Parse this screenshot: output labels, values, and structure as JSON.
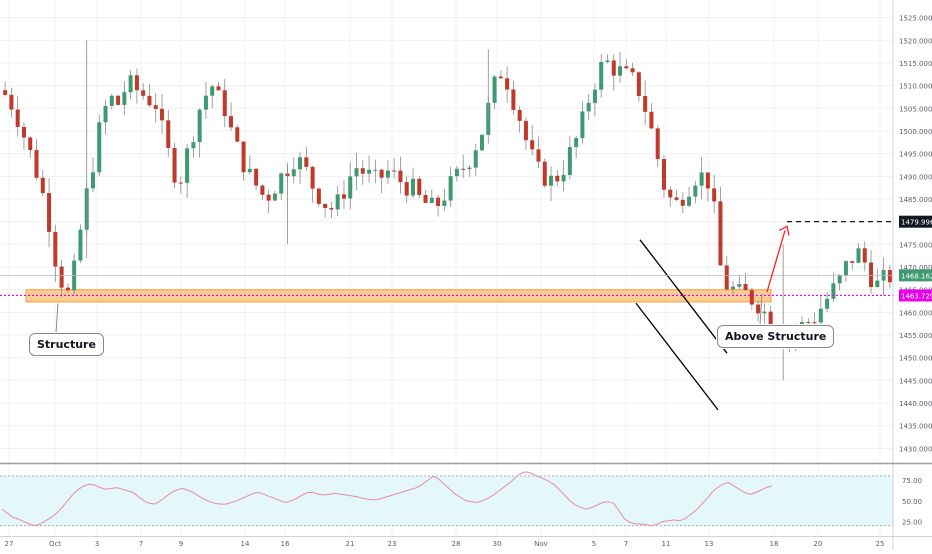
{
  "colors": {
    "up": "#3f9a72",
    "down": "#c0392b",
    "wick": "#8a8a8a",
    "zone": "#f7a23c",
    "support": "#e800e8",
    "target": "#000000",
    "arrow": "#ff1f1f",
    "rsi": "#e88aa8",
    "rsi_band": "#e4f7fb",
    "current": "#3f9a72"
  },
  "annotations": {
    "structure": "Structure",
    "above_structure": "Above Structure"
  },
  "chart_data": [
    {
      "type": "candlestick",
      "title": "",
      "y_ticks": [
        "1430.000",
        "1435.000",
        "1440.000",
        "1445.000",
        "1450.000",
        "1455.000",
        "1460.000",
        "1465.000",
        "1470.000",
        "1475.000",
        "1480.000",
        "1485.000",
        "1490.000",
        "1495.000",
        "1500.000",
        "1505.000",
        "1510.000",
        "1515.000",
        "1520.000",
        "1525.000"
      ],
      "ylim": [
        1427,
        1528
      ],
      "x_ticks": [
        "27",
        "Oct",
        "3",
        "7",
        "9",
        "14",
        "16",
        "21",
        "23",
        "28",
        "30",
        "Nov",
        "5",
        "7",
        "11",
        "13",
        "18",
        "20",
        "25"
      ],
      "price_labels": {
        "target": "1479.996",
        "current": "1468.162",
        "support": "1463.729"
      },
      "levels": {
        "target": 1479.996,
        "current": 1468.162,
        "support": 1463.729,
        "zone_low": 1462.3,
        "zone_high": 1465.0
      },
      "close_path": [
        1508,
        1506,
        1503,
        1499,
        1495,
        1491,
        1486,
        1480,
        1472,
        1467,
        1464,
        1469,
        1478,
        1486,
        1493,
        1500,
        1505,
        1507,
        1506,
        1509,
        1510,
        1509,
        1508,
        1507,
        1506,
        1500,
        1495,
        1491,
        1490,
        1495,
        1500,
        1505,
        1508,
        1510,
        1507,
        1505,
        1500,
        1496,
        1493,
        1490,
        1488,
        1486,
        1486,
        1488,
        1490,
        1492,
        1494,
        1493,
        1491,
        1488,
        1486,
        1484,
        1483,
        1484,
        1487,
        1490,
        1492,
        1491,
        1490,
        1489,
        1490,
        1491,
        1490,
        1489,
        1488,
        1487,
        1485,
        1484,
        1483,
        1484,
        1486,
        1488,
        1490,
        1492,
        1494,
        1497,
        1500,
        1505,
        1510,
        1513,
        1511,
        1507,
        1503,
        1498,
        1494,
        1491,
        1490,
        1489,
        1490,
        1492,
        1495,
        1498,
        1502,
        1507,
        1511,
        1514,
        1515,
        1514,
        1513,
        1512,
        1511,
        1509,
        1505,
        1500,
        1494,
        1488,
        1485,
        1484,
        1486,
        1488,
        1490,
        1490,
        1489,
        1482,
        1470,
        1466,
        1465,
        1464,
        1464,
        1463,
        1462,
        1460,
        1458,
        1457,
        1456,
        1455,
        1456,
        1457,
        1458,
        1459,
        1461,
        1463,
        1465,
        1467,
        1470,
        1472,
        1473,
        1471,
        1468,
        1466,
        1467,
        1468
      ],
      "rsi": {
        "ticks": [
          "75.00",
          "50.00",
          "25.00"
        ],
        "ylim": [
          10,
          92
        ],
        "upper": 80,
        "lower": 20,
        "values": [
          40,
          35,
          30,
          28,
          25,
          22,
          20,
          22,
          26,
          30,
          35,
          42,
          50,
          58,
          64,
          68,
          70,
          69,
          66,
          64,
          65,
          66,
          64,
          62,
          60,
          55,
          50,
          47,
          46,
          50,
          55,
          60,
          63,
          65,
          63,
          60,
          56,
          52,
          49,
          47,
          46,
          46,
          48,
          50,
          53,
          56,
          59,
          60,
          58,
          55,
          53,
          50,
          48,
          50,
          53,
          57,
          60,
          60,
          58,
          57,
          58,
          59,
          58,
          57,
          56,
          55,
          53,
          52,
          51,
          52,
          54,
          56,
          58,
          60,
          62,
          64,
          66,
          70,
          75,
          80,
          76,
          70,
          64,
          58,
          54,
          50,
          49,
          48,
          50,
          53,
          57,
          62,
          67,
          72,
          78,
          83,
          85,
          83,
          80,
          77,
          74,
          70,
          64,
          57,
          50,
          45,
          42,
          40,
          42,
          45,
          48,
          49,
          47,
          38,
          28,
          24,
          22,
          22,
          21,
          20,
          22,
          25,
          26,
          27,
          26,
          28,
          33,
          38,
          45,
          52,
          60,
          66,
          70,
          72,
          68,
          64,
          60,
          58,
          60,
          63,
          66,
          68
        ]
      }
    }
  ]
}
